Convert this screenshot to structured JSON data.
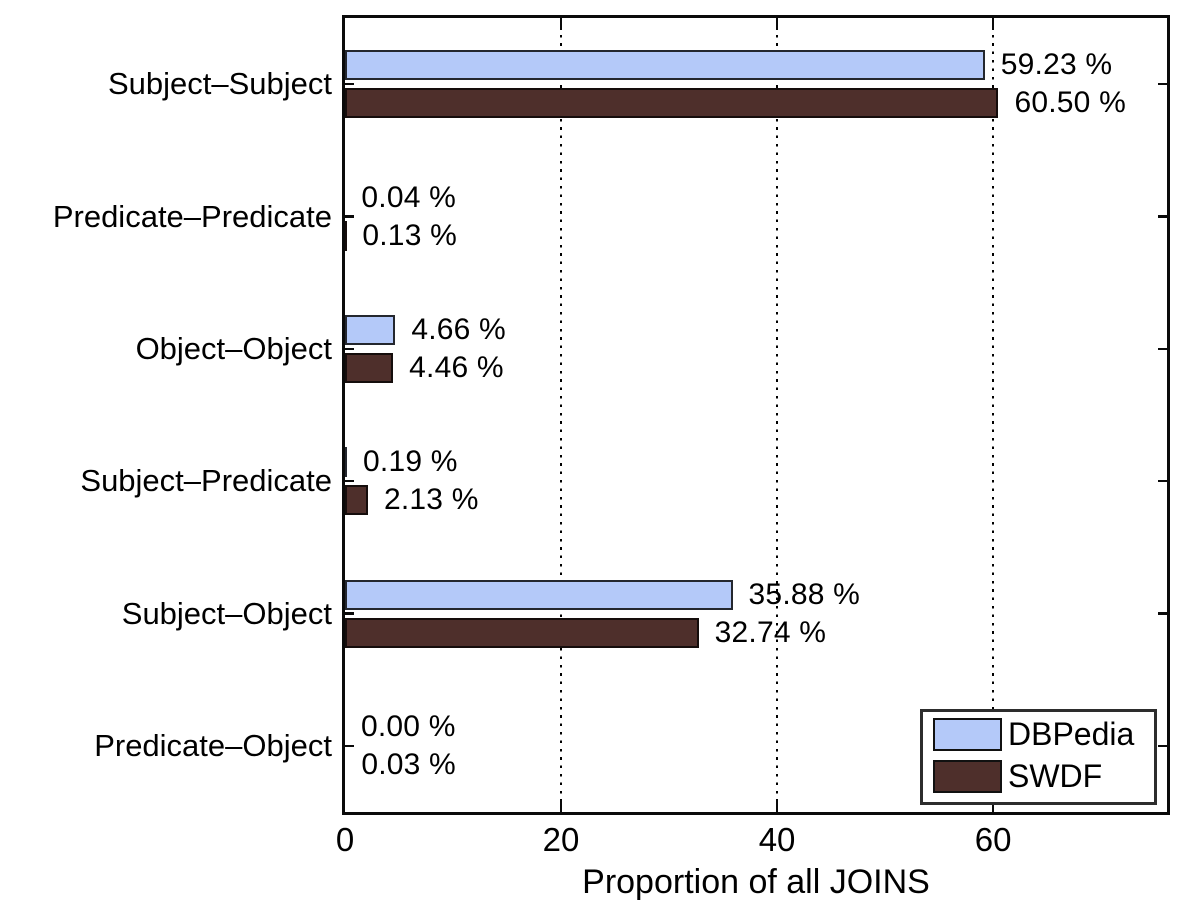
{
  "chart_data": {
    "type": "bar",
    "orientation": "horizontal",
    "xlabel": "Proportion of all JOINS",
    "xlim": [
      0,
      76.1
    ],
    "xticks": [
      0,
      20,
      40,
      60
    ],
    "grid": "vertical dotted lines at 20, 40, 60",
    "legend_position": "bottom-right",
    "categories": [
      "Subject–Subject",
      "Predicate–Predicate",
      "Object–Object",
      "Subject–Predicate",
      "Subject–Object",
      "Predicate–Object"
    ],
    "series": [
      {
        "name": "DBPedia",
        "fill": "#b4c9f9",
        "edge": "#24272e",
        "values": [
          59.23,
          0.04,
          4.66,
          0.19,
          35.88,
          0.0
        ],
        "labels": [
          "59.23 %",
          "0.04 %",
          "4.66 %",
          "0.19 %",
          "35.88 %",
          "0.00 %"
        ]
      },
      {
        "name": "SWDF",
        "fill": "#4e2f2b",
        "edge": "#150d0c",
        "values": [
          60.5,
          0.13,
          4.46,
          2.13,
          32.74,
          0.03
        ],
        "labels": [
          "60.50 %",
          "0.13 %",
          "4.46 %",
          "2.13 %",
          "32.74 %",
          "0.03 %"
        ]
      }
    ]
  }
}
